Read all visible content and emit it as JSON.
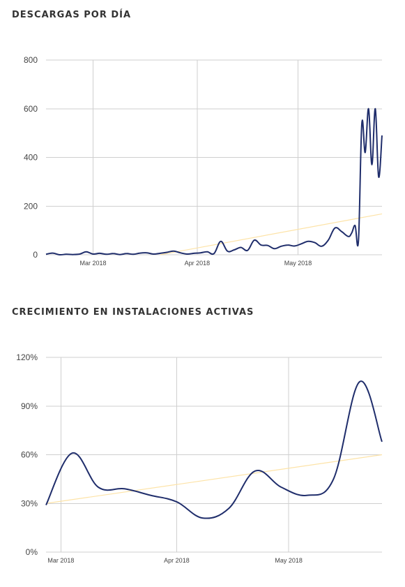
{
  "sections": [
    {
      "title": "DESCARGAS POR DÍA"
    },
    {
      "title": "CRECIMIENTO EN INSTALACIONES ACTIVAS"
    }
  ],
  "colors": {
    "line": "#1f2d6b",
    "trend": "#fde3a7",
    "grid": "#cfcfcf"
  },
  "chart_data": [
    {
      "type": "line",
      "title": "DESCARGAS POR DÍA",
      "x_format": "date",
      "x_start": "2018-02-15",
      "x_end": "2018-05-26",
      "ylim": [
        0,
        800
      ],
      "yticks": [
        0,
        200,
        400,
        600,
        800
      ],
      "ytick_labels": [
        "0",
        "200",
        "400",
        "600",
        "800"
      ],
      "xticks": [
        {
          "date": "2018-03-01",
          "label": "Mar 2018"
        },
        {
          "date": "2018-04-01",
          "label": "Apr 2018"
        },
        {
          "date": "2018-05-01",
          "label": "May 2018"
        }
      ],
      "grid": true,
      "series": [
        {
          "x": [
            "2018-02-15",
            "2018-02-17",
            "2018-02-19",
            "2018-02-21",
            "2018-02-23",
            "2018-02-25",
            "2018-02-27",
            "2018-03-01",
            "2018-03-03",
            "2018-03-05",
            "2018-03-07",
            "2018-03-09",
            "2018-03-11",
            "2018-03-13",
            "2018-03-15",
            "2018-03-17",
            "2018-03-19",
            "2018-03-21",
            "2018-03-23",
            "2018-03-25",
            "2018-03-27",
            "2018-03-29",
            "2018-03-31",
            "2018-04-02",
            "2018-04-04",
            "2018-04-06",
            "2018-04-08",
            "2018-04-10",
            "2018-04-12",
            "2018-04-14",
            "2018-04-16",
            "2018-04-18",
            "2018-04-20",
            "2018-04-22",
            "2018-04-24",
            "2018-04-26",
            "2018-04-28",
            "2018-04-30",
            "2018-05-02",
            "2018-05-04",
            "2018-05-06",
            "2018-05-08",
            "2018-05-10",
            "2018-05-12",
            "2018-05-14",
            "2018-05-16",
            "2018-05-17",
            "2018-05-18",
            "2018-05-19",
            "2018-05-20",
            "2018-05-21",
            "2018-05-22",
            "2018-05-23",
            "2018-05-24",
            "2018-05-25",
            "2018-05-26"
          ],
          "y": [
            2,
            7,
            0,
            2,
            1,
            3,
            12,
            3,
            6,
            2,
            5,
            1,
            5,
            2,
            7,
            8,
            3,
            6,
            10,
            15,
            8,
            3,
            6,
            8,
            12,
            5,
            55,
            15,
            20,
            30,
            18,
            60,
            40,
            38,
            25,
            35,
            40,
            36,
            45,
            55,
            50,
            35,
            60,
            110,
            95,
            75,
            90,
            120,
            60,
            540,
            420,
            600,
            370,
            600,
            320,
            490
          ]
        }
      ],
      "trend": {
        "x": [
          "2018-03-21",
          "2018-05-26"
        ],
        "y": [
          0,
          168
        ]
      }
    },
    {
      "type": "line",
      "title": "CRECIMIENTO EN INSTALACIONES ACTIVAS",
      "x_format": "date",
      "x_start": "2018-02-25",
      "x_end": "2018-05-26",
      "ylim": [
        0,
        120
      ],
      "yticks": [
        0,
        30,
        60,
        90,
        120
      ],
      "ytick_labels": [
        "0%",
        "30%",
        "60%",
        "90%",
        "120%"
      ],
      "xticks": [
        {
          "date": "2018-03-01",
          "label": "Mar 2018"
        },
        {
          "date": "2018-04-01",
          "label": "Apr 2018"
        },
        {
          "date": "2018-05-01",
          "label": "May 2018"
        }
      ],
      "grid": true,
      "series": [
        {
          "x": [
            "2018-02-25",
            "2018-03-04",
            "2018-03-11",
            "2018-03-18",
            "2018-03-25",
            "2018-04-01",
            "2018-04-08",
            "2018-04-15",
            "2018-04-22",
            "2018-04-29",
            "2018-05-06",
            "2018-05-13",
            "2018-05-20",
            "2018-05-26"
          ],
          "y": [
            29,
            61,
            40,
            39,
            35,
            31,
            21,
            27,
            50,
            40,
            35,
            45,
            105,
            68
          ]
        }
      ],
      "trend": {
        "x": [
          "2018-02-25",
          "2018-05-26"
        ],
        "y": [
          30,
          60
        ]
      }
    }
  ]
}
